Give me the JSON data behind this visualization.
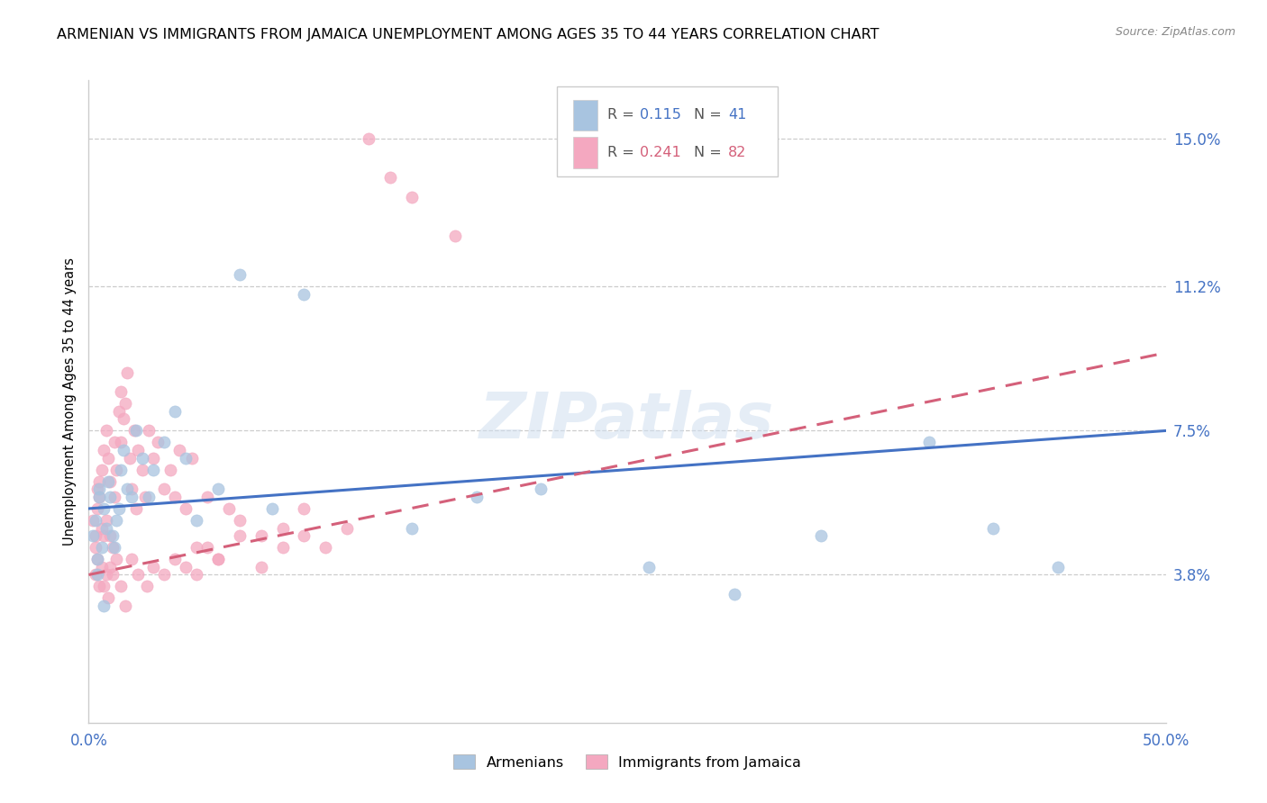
{
  "title": "ARMENIAN VS IMMIGRANTS FROM JAMAICA UNEMPLOYMENT AMONG AGES 35 TO 44 YEARS CORRELATION CHART",
  "source": "Source: ZipAtlas.com",
  "ylabel": "Unemployment Among Ages 35 to 44 years",
  "xlim": [
    0.0,
    0.5
  ],
  "ylim": [
    0.0,
    0.165
  ],
  "xtick_positions": [
    0.0,
    0.1,
    0.2,
    0.3,
    0.4,
    0.5
  ],
  "xticklabels": [
    "0.0%",
    "",
    "",
    "",
    "",
    "50.0%"
  ],
  "ytick_labels_right": [
    "15.0%",
    "11.2%",
    "7.5%",
    "3.8%"
  ],
  "ytick_vals_right": [
    0.15,
    0.112,
    0.075,
    0.038
  ],
  "legend_r1": "0.115",
  "legend_n1": "41",
  "legend_r2": "0.241",
  "legend_n2": "82",
  "armenians_x": [
    0.002,
    0.003,
    0.004,
    0.004,
    0.005,
    0.005,
    0.006,
    0.007,
    0.007,
    0.008,
    0.009,
    0.01,
    0.011,
    0.012,
    0.013,
    0.014,
    0.015,
    0.016,
    0.018,
    0.02,
    0.022,
    0.025,
    0.028,
    0.03,
    0.035,
    0.04,
    0.045,
    0.05,
    0.06,
    0.07,
    0.085,
    0.1,
    0.15,
    0.18,
    0.21,
    0.26,
    0.3,
    0.34,
    0.39,
    0.42,
    0.45
  ],
  "armenians_y": [
    0.048,
    0.052,
    0.042,
    0.038,
    0.06,
    0.058,
    0.045,
    0.03,
    0.055,
    0.05,
    0.062,
    0.058,
    0.048,
    0.045,
    0.052,
    0.055,
    0.065,
    0.07,
    0.06,
    0.058,
    0.075,
    0.068,
    0.058,
    0.065,
    0.072,
    0.08,
    0.068,
    0.052,
    0.06,
    0.115,
    0.055,
    0.11,
    0.05,
    0.058,
    0.06,
    0.04,
    0.033,
    0.048,
    0.072,
    0.05,
    0.04
  ],
  "jamaica_x": [
    0.002,
    0.003,
    0.003,
    0.004,
    0.004,
    0.005,
    0.005,
    0.006,
    0.006,
    0.007,
    0.007,
    0.008,
    0.008,
    0.009,
    0.01,
    0.01,
    0.011,
    0.012,
    0.012,
    0.013,
    0.014,
    0.015,
    0.015,
    0.016,
    0.017,
    0.018,
    0.019,
    0.02,
    0.021,
    0.022,
    0.023,
    0.025,
    0.026,
    0.028,
    0.03,
    0.032,
    0.035,
    0.038,
    0.04,
    0.042,
    0.045,
    0.048,
    0.05,
    0.055,
    0.06,
    0.065,
    0.07,
    0.08,
    0.09,
    0.1,
    0.003,
    0.004,
    0.005,
    0.006,
    0.007,
    0.008,
    0.009,
    0.01,
    0.011,
    0.013,
    0.015,
    0.017,
    0.02,
    0.023,
    0.027,
    0.03,
    0.035,
    0.04,
    0.045,
    0.05,
    0.055,
    0.06,
    0.07,
    0.08,
    0.09,
    0.1,
    0.11,
    0.12,
    0.13,
    0.14,
    0.15,
    0.17
  ],
  "jamaica_y": [
    0.052,
    0.048,
    0.045,
    0.055,
    0.06,
    0.062,
    0.058,
    0.065,
    0.05,
    0.07,
    0.048,
    0.075,
    0.052,
    0.068,
    0.048,
    0.062,
    0.045,
    0.072,
    0.058,
    0.065,
    0.08,
    0.085,
    0.072,
    0.078,
    0.082,
    0.09,
    0.068,
    0.06,
    0.075,
    0.055,
    0.07,
    0.065,
    0.058,
    0.075,
    0.068,
    0.072,
    0.06,
    0.065,
    0.058,
    0.07,
    0.055,
    0.068,
    0.045,
    0.058,
    0.042,
    0.055,
    0.052,
    0.048,
    0.045,
    0.055,
    0.038,
    0.042,
    0.035,
    0.04,
    0.035,
    0.038,
    0.032,
    0.04,
    0.038,
    0.042,
    0.035,
    0.03,
    0.042,
    0.038,
    0.035,
    0.04,
    0.038,
    0.042,
    0.04,
    0.038,
    0.045,
    0.042,
    0.048,
    0.04,
    0.05,
    0.048,
    0.045,
    0.05,
    0.15,
    0.14,
    0.135,
    0.125
  ],
  "color_armenian": "#a8c4e0",
  "color_jamaica": "#f4a8c0",
  "color_line_armenian": "#4472c4",
  "color_line_jamaica": "#d4607a",
  "watermark": "ZIPatlas",
  "title_fontsize": 11.5,
  "axis_label_fontsize": 10
}
